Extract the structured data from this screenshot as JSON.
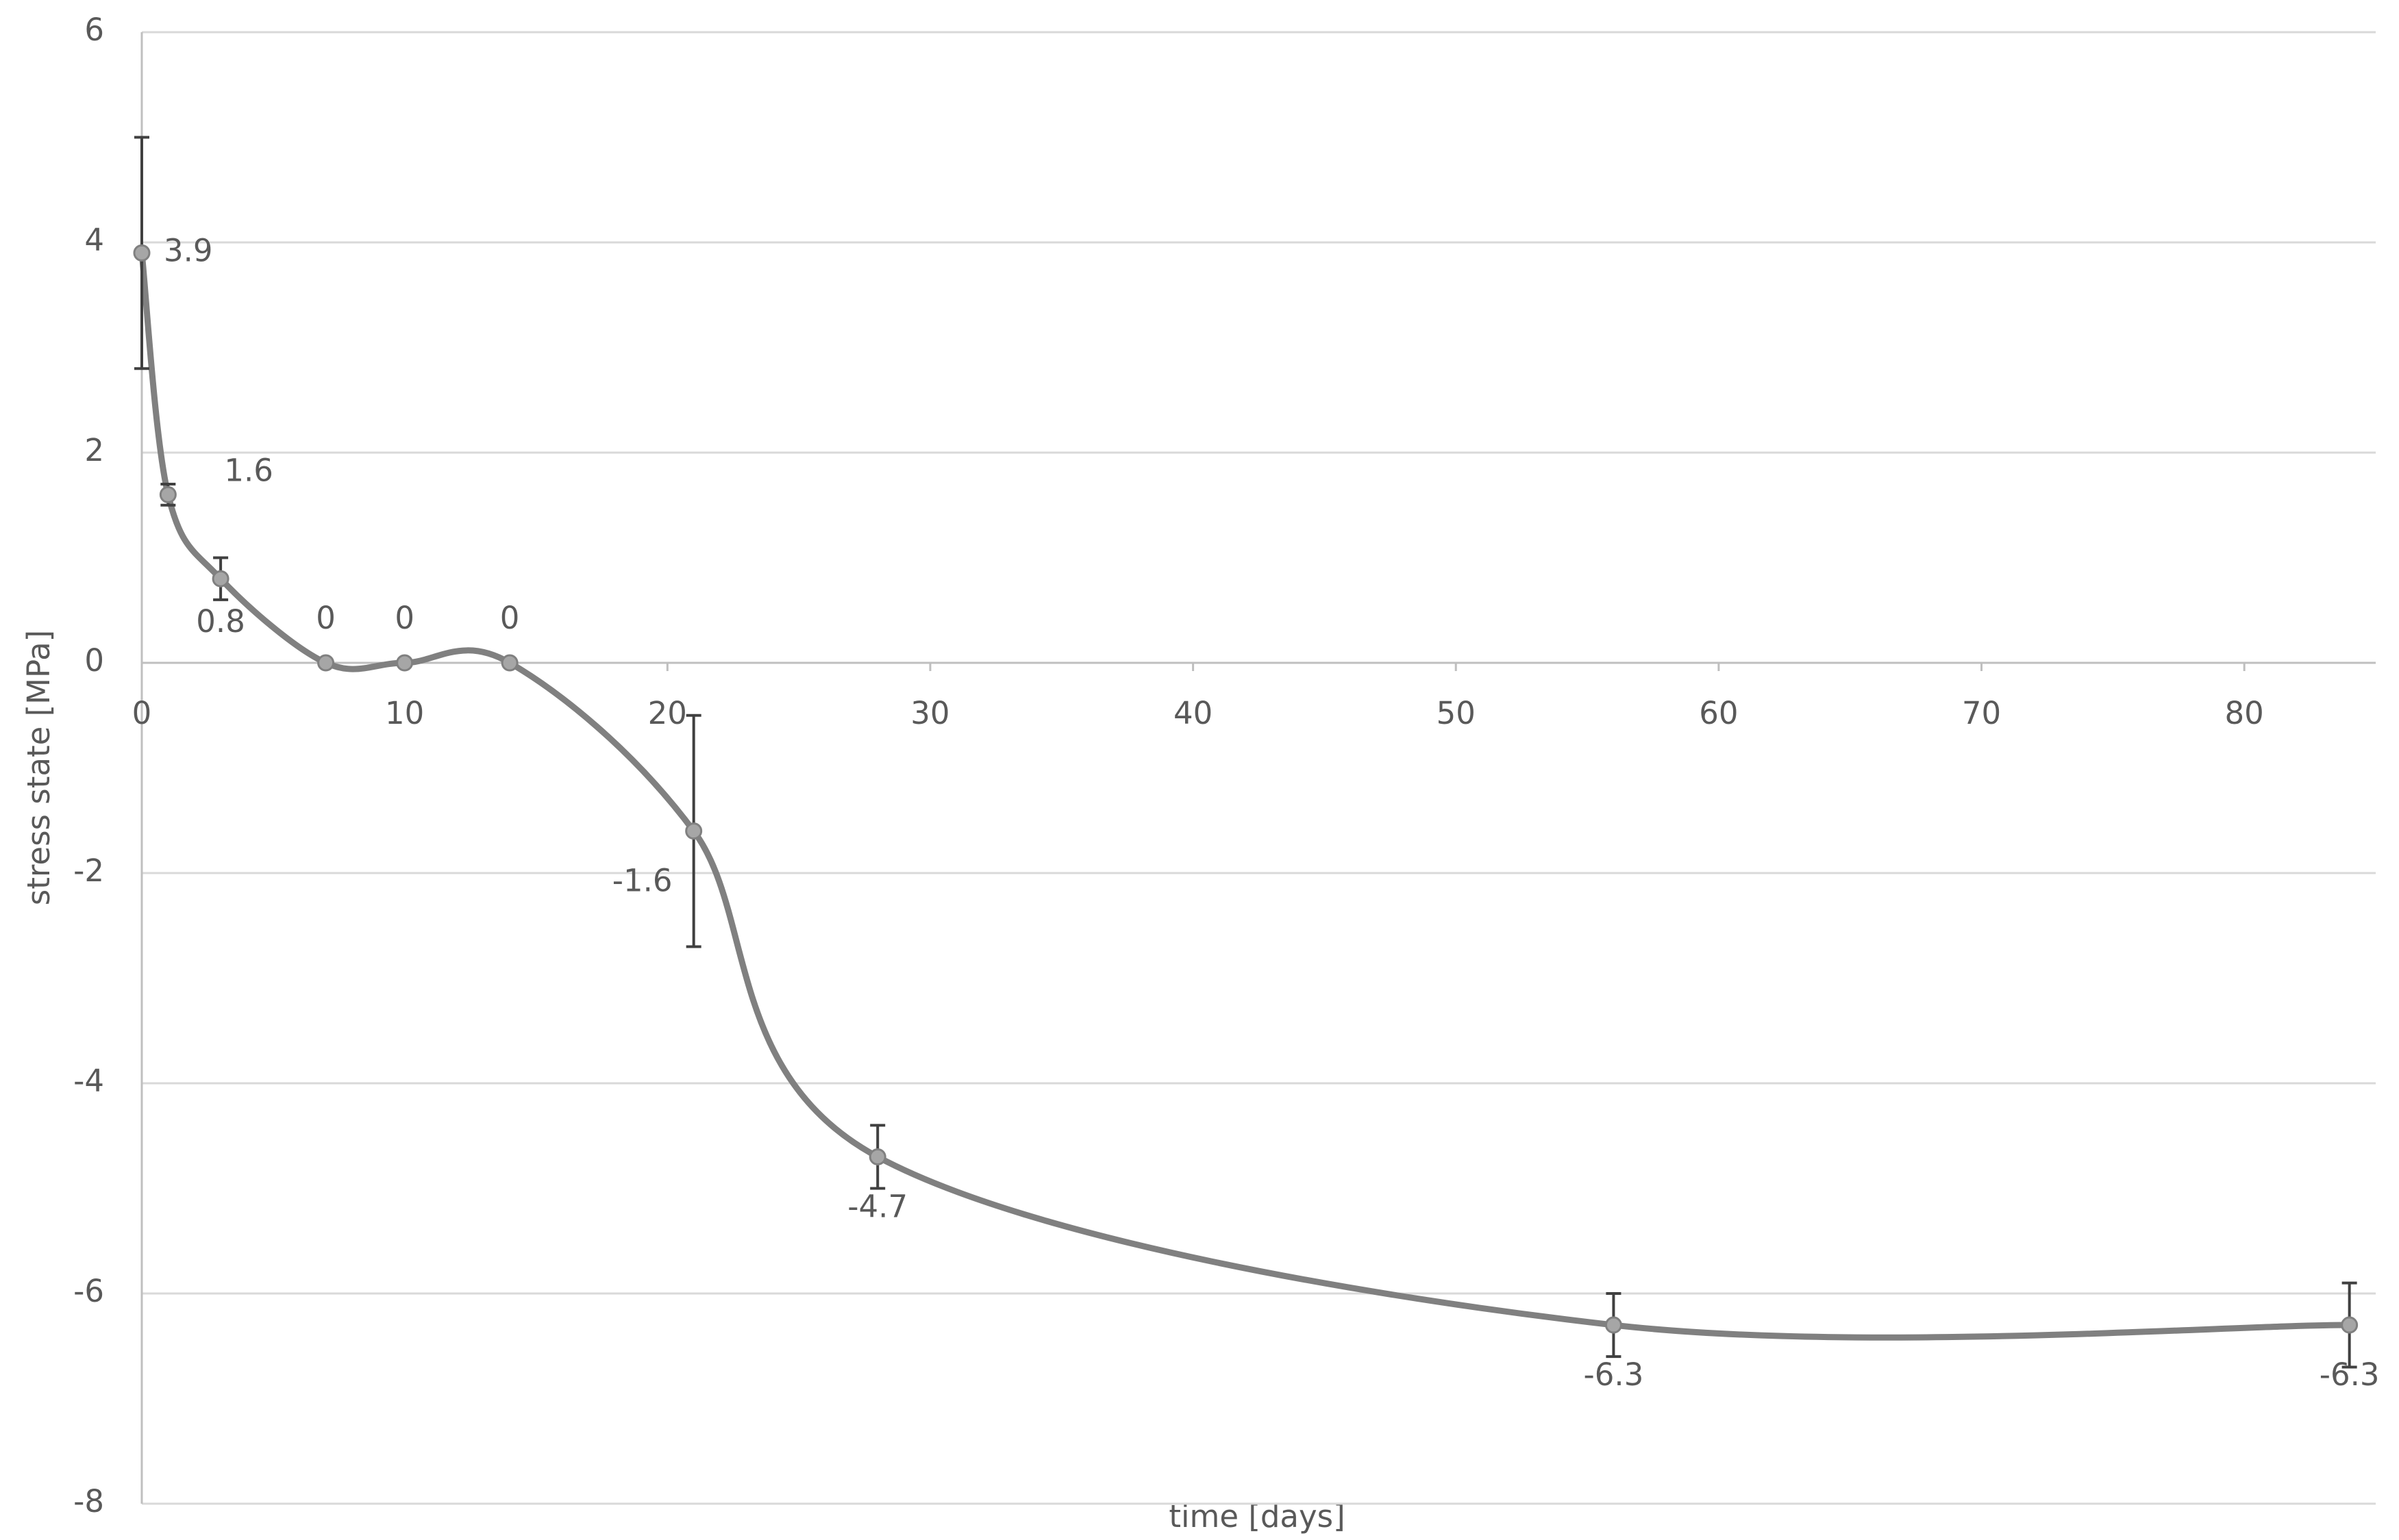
{
  "chart_data": {
    "type": "line",
    "x_label": "time [days]",
    "y_label": "stress state [MPa]",
    "x": [
      0,
      1,
      3,
      7,
      10,
      14,
      21,
      28,
      56,
      84
    ],
    "values": [
      3.9,
      1.6,
      0.8,
      0,
      0,
      0,
      -1.6,
      -4.7,
      -6.3,
      -6.3
    ],
    "errors": [
      1.1,
      0.1,
      0.2,
      0,
      0,
      0,
      1.1,
      0.3,
      0.3,
      0.4
    ],
    "color": "#808080",
    "marker_color": "#a6a6a6",
    "error_color": "#404040",
    "xlim": [
      0,
      85
    ],
    "xticks": [
      0,
      10,
      20,
      30,
      40,
      50,
      60,
      70,
      80
    ],
    "ylim": [
      -8,
      6
    ],
    "yticks": [
      -8,
      -6,
      -4,
      -2,
      0,
      2,
      4,
      6
    ],
    "grid": true,
    "smooth": true
  }
}
